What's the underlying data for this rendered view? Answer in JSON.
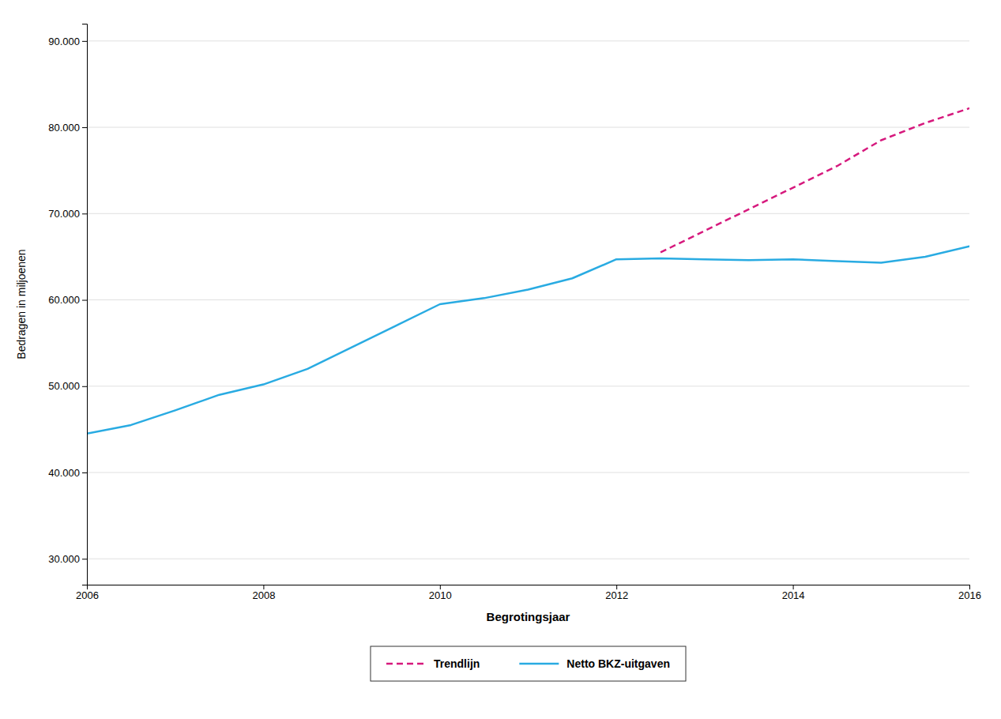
{
  "chart_data": {
    "type": "line",
    "xlabel": "Begrotingsjaar",
    "ylabel": "Bedragen in miljoenen",
    "series": [
      {
        "name": "Trendlijn",
        "color": "#D6197D",
        "line_style": "dashed",
        "x": [
          2012.5,
          2013,
          2013.5,
          2014,
          2014.5,
          2015,
          2015.5,
          2016
        ],
        "values": [
          65500,
          68000,
          70500,
          73000,
          75500,
          78500,
          80500,
          82200
        ]
      },
      {
        "name": "Netto BKZ-uitgaven",
        "color": "#29ABE2",
        "line_style": "solid",
        "x": [
          2006,
          2006.5,
          2007,
          2007.5,
          2008,
          2008.5,
          2009,
          2009.5,
          2010,
          2010.5,
          2011,
          2011.5,
          2012,
          2012.5,
          2013,
          2013.5,
          2014,
          2014.5,
          2015,
          2015.5,
          2016
        ],
        "values": [
          44500,
          45500,
          47200,
          49000,
          50200,
          52000,
          54500,
          57000,
          59500,
          60200,
          61200,
          62500,
          64700,
          64800,
          64700,
          64600,
          64700,
          64500,
          64300,
          65000,
          66200
        ]
      }
    ],
    "xlim": [
      2006,
      2016
    ],
    "xticks": [
      2006,
      2008,
      2010,
      2012,
      2014,
      2016
    ],
    "ylim": [
      27000,
      92000
    ],
    "yticks": [
      {
        "value": 30000,
        "label": "30.000"
      },
      {
        "value": 40000,
        "label": "40.000"
      },
      {
        "value": 50000,
        "label": "50.000"
      },
      {
        "value": 60000,
        "label": "60.000"
      },
      {
        "value": 70000,
        "label": "70.000"
      },
      {
        "value": 80000,
        "label": "80.000"
      },
      {
        "value": 90000,
        "label": "90.000"
      }
    ],
    "grid": true,
    "legend": "bottom"
  }
}
